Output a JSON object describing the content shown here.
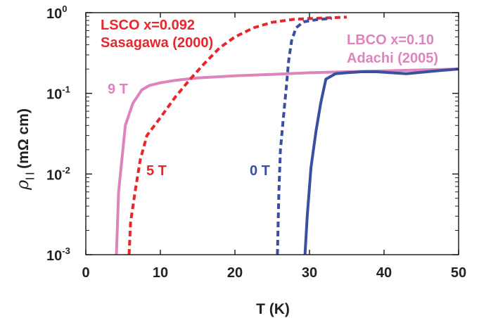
{
  "chart_data": {
    "type": "line",
    "xlabel": "T (K)",
    "ylabel": "ρ|| (mΩ cm)",
    "ylabel_parts": {
      "rho": "ρ",
      "sub": "| |",
      "units": "(mΩ cm)"
    },
    "xlim": [
      0,
      50
    ],
    "ylim": [
      0.001,
      1
    ],
    "yscale": "log",
    "grid": false,
    "x_ticks": [
      0,
      10,
      20,
      30,
      40,
      50
    ],
    "x_tick_labels": [
      "0",
      "10",
      "20",
      "30",
      "40",
      "50"
    ],
    "y_ticks": [
      {
        "value": 1,
        "base": "10",
        "exp": "0"
      },
      {
        "value": 0.1,
        "base": "10",
        "exp": "-1"
      },
      {
        "value": 0.01,
        "base": "10",
        "exp": "-2"
      },
      {
        "value": 0.001,
        "base": "10",
        "exp": "-3"
      }
    ],
    "colors": {
      "lsco": "#e8262b",
      "lbco_0T": "#3a4fa0",
      "lbco_9T": "#de84bc"
    },
    "series": [
      {
        "label": "9 T",
        "color": "#de84bc",
        "style": "solid",
        "points": [
          [
            4.1,
            0.001
          ],
          [
            4.4,
            0.006
          ],
          [
            5.3,
            0.04
          ],
          [
            6.3,
            0.075
          ],
          [
            7.5,
            0.11
          ],
          [
            8.5,
            0.125
          ],
          [
            10,
            0.135
          ],
          [
            12,
            0.145
          ],
          [
            15,
            0.155
          ],
          [
            20,
            0.165
          ],
          [
            25,
            0.172
          ],
          [
            30,
            0.18
          ],
          [
            35,
            0.185
          ],
          [
            40,
            0.19
          ],
          [
            45,
            0.195
          ],
          [
            50,
            0.2
          ]
        ]
      },
      {
        "label": "5 T",
        "color": "#e8262b",
        "style": "dashed",
        "points": [
          [
            5.8,
            0.001
          ],
          [
            6.0,
            0.0025
          ],
          [
            6.6,
            0.006
          ],
          [
            7.3,
            0.015
          ],
          [
            8.2,
            0.03
          ],
          [
            10,
            0.05
          ],
          [
            12,
            0.09
          ],
          [
            14,
            0.15
          ],
          [
            16,
            0.24
          ],
          [
            18,
            0.37
          ],
          [
            20,
            0.5
          ],
          [
            22.5,
            0.65
          ],
          [
            25,
            0.76
          ],
          [
            28,
            0.83
          ],
          [
            32,
            0.86
          ],
          [
            35,
            0.88
          ]
        ]
      },
      {
        "label": "0 T",
        "color": "#3a4fa0",
        "style": "dashed",
        "points": [
          [
            25.7,
            0.001
          ],
          [
            25.9,
            0.006
          ],
          [
            26.1,
            0.02
          ],
          [
            26.5,
            0.05
          ],
          [
            26.9,
            0.12
          ],
          [
            27.2,
            0.25
          ],
          [
            27.6,
            0.45
          ],
          [
            28.2,
            0.65
          ],
          [
            29.2,
            0.77
          ],
          [
            31,
            0.82
          ],
          [
            33,
            0.85
          ]
        ]
      },
      {
        "label": "0 T",
        "color": "#3a4fa0",
        "style": "solid",
        "points": [
          [
            29.4,
            0.001
          ],
          [
            29.7,
            0.003
          ],
          [
            30.2,
            0.012
          ],
          [
            30.9,
            0.035
          ],
          [
            31.5,
            0.075
          ],
          [
            32.2,
            0.15
          ],
          [
            33.5,
            0.175
          ],
          [
            35,
            0.18
          ],
          [
            37,
            0.185
          ],
          [
            39,
            0.185
          ],
          [
            41,
            0.18
          ],
          [
            43,
            0.175
          ],
          [
            45,
            0.182
          ],
          [
            47,
            0.19
          ],
          [
            50,
            0.2
          ]
        ]
      }
    ],
    "annotations": [
      {
        "text": "LSCO x=0.092",
        "color": "#e8262b"
      },
      {
        "text": "Sasagawa (2000)",
        "color": "#e8262b"
      },
      {
        "text": "LBCO x=0.10",
        "color": "#de84bc"
      },
      {
        "text": "Adachi (2005)",
        "color": "#de84bc"
      },
      {
        "text": "9 T",
        "color": "#de84bc"
      },
      {
        "text": "5 T",
        "color": "#e8262b"
      },
      {
        "text": "0 T",
        "color": "#3a4fa0"
      }
    ]
  }
}
